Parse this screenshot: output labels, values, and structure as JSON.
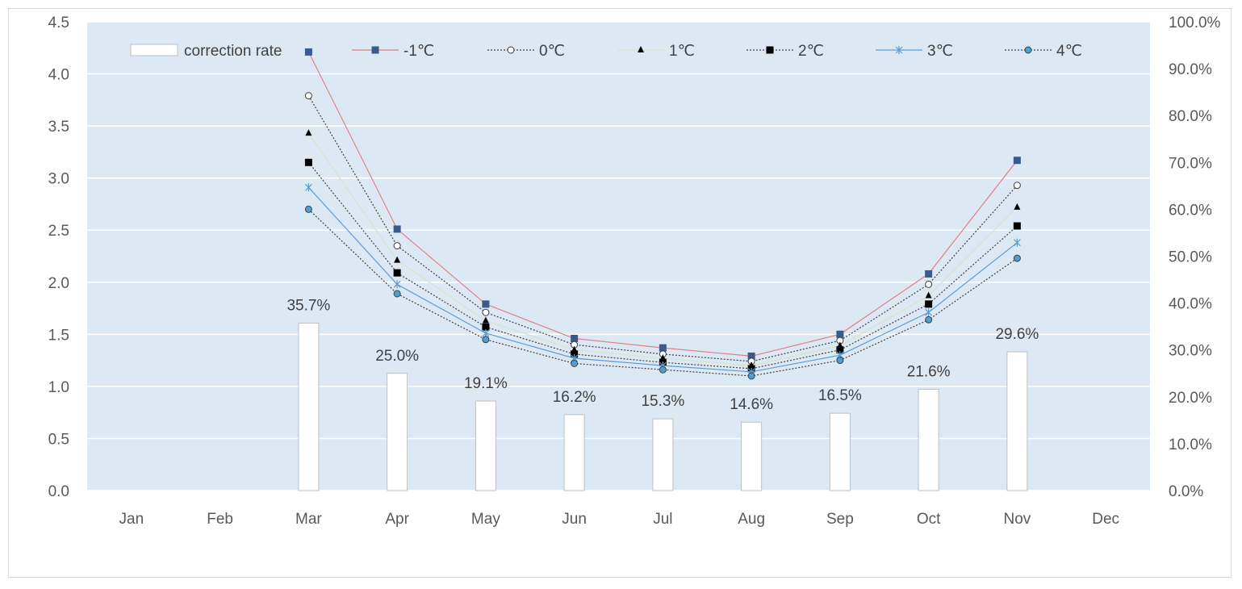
{
  "chart_data": {
    "type": "bar+line",
    "title": "",
    "categories": [
      "Jan",
      "Feb",
      "Mar",
      "Apr",
      "May",
      "Jun",
      "Jul",
      "Aug",
      "Sep",
      "Oct",
      "Nov",
      "Dec"
    ],
    "bars": {
      "name": "correction rate",
      "axis": "right",
      "values": [
        null,
        null,
        35.7,
        25.0,
        19.1,
        16.2,
        15.3,
        14.6,
        16.5,
        21.6,
        29.6,
        null
      ],
      "labels": [
        "",
        "",
        "35.7%",
        "25.0%",
        "19.1%",
        "16.2%",
        "15.3%",
        "14.6%",
        "16.5%",
        "21.6%",
        "29.6%",
        ""
      ],
      "color": "#ffffff",
      "border": "#bfbfbf"
    },
    "series": [
      {
        "name": "-1℃",
        "values": [
          null,
          null,
          4.21,
          2.51,
          1.79,
          1.46,
          1.37,
          1.29,
          1.5,
          2.08,
          3.17,
          null
        ],
        "color": "#e07f7f",
        "marker": "square",
        "marker_fill": "#3a5a8c",
        "dash": "solid"
      },
      {
        "name": "0℃",
        "values": [
          null,
          null,
          3.79,
          2.35,
          1.71,
          1.4,
          1.31,
          1.24,
          1.44,
          1.98,
          2.93,
          null
        ],
        "color": "#404040",
        "marker": "circle",
        "marker_fill": "#ffffff",
        "dash": "dotted"
      },
      {
        "name": "1℃",
        "values": [
          null,
          null,
          3.43,
          2.21,
          1.63,
          1.35,
          1.27,
          1.2,
          1.39,
          1.87,
          2.72,
          null
        ],
        "color": "#d4e4c8",
        "marker": "triangle",
        "marker_fill": "#000000",
        "dash": "solid"
      },
      {
        "name": "2℃",
        "values": [
          null,
          null,
          3.15,
          2.09,
          1.57,
          1.31,
          1.23,
          1.17,
          1.35,
          1.79,
          2.54,
          null
        ],
        "color": "#404040",
        "marker": "square",
        "marker_fill": "#000000",
        "dash": "dotted"
      },
      {
        "name": "3℃",
        "values": [
          null,
          null,
          2.91,
          1.98,
          1.51,
          1.27,
          1.2,
          1.14,
          1.3,
          1.71,
          2.38,
          null
        ],
        "color": "#5b9bd5",
        "marker": "star",
        "marker_fill": "#5b9bd5",
        "dash": "solid"
      },
      {
        "name": "4℃",
        "values": [
          null,
          null,
          2.7,
          1.89,
          1.45,
          1.22,
          1.16,
          1.1,
          1.25,
          1.64,
          2.23,
          null
        ],
        "color": "#404040",
        "marker": "circle",
        "marker_fill": "#4a9fd6",
        "dash": "dotted"
      }
    ],
    "left_axis": {
      "min": 0,
      "max": 4.5,
      "ticks": [
        "0.0",
        "0.5",
        "1.0",
        "1.5",
        "2.0",
        "2.5",
        "3.0",
        "3.5",
        "4.0",
        "4.5"
      ]
    },
    "right_axis": {
      "min": 0,
      "max": 100,
      "ticks": [
        "0.0%",
        "10.0%",
        "20.0%",
        "30.0%",
        "40.0%",
        "50.0%",
        "60.0%",
        "70.0%",
        "80.0%",
        "90.0%",
        "100.0%"
      ]
    },
    "grid": true,
    "legend_position": "top",
    "plot_background": "#dce9f5"
  }
}
